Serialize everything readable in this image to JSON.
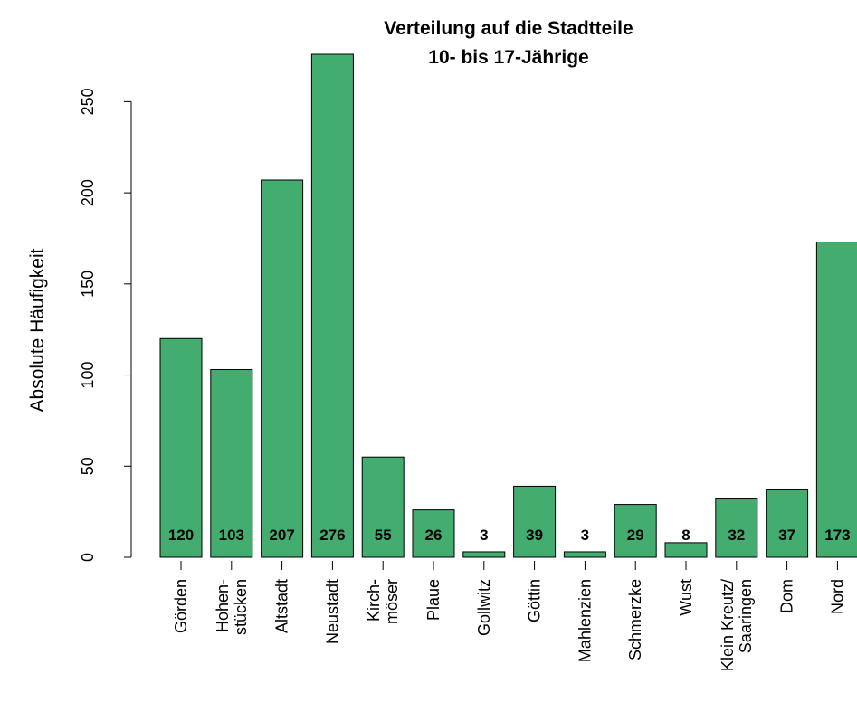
{
  "chart_data": {
    "type": "bar",
    "title": "Verteilung auf die Stadtteile",
    "subtitle": "10- bis 17-Jährige",
    "y_label": "Absolute Häufigkeit",
    "categories": [
      "Görden",
      "Hohen-\nstücken",
      "Altstadt",
      "Neustadt",
      "Kirch-\nmöser",
      "Plaue",
      "Gollwitz",
      "Göttin",
      "Mahlenzien",
      "Schmerzke",
      "Wust",
      "Klein Kreutz/\nSaaringen",
      "Dom",
      "Nord"
    ],
    "values": [
      120,
      103,
      207,
      276,
      55,
      26,
      3,
      39,
      3,
      29,
      8,
      32,
      37,
      173
    ],
    "color": "#43ac6f",
    "ylim": [
      0,
      276
    ],
    "yticks": [
      0,
      50,
      100,
      150,
      200,
      250
    ]
  }
}
